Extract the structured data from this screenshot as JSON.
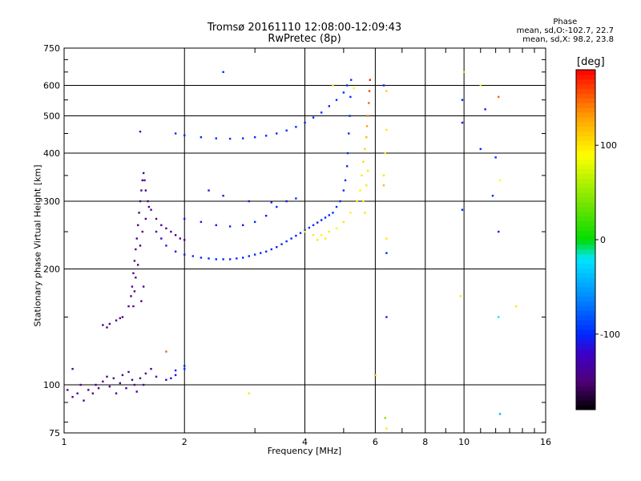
{
  "chart_data": {
    "type": "scatter",
    "title": "Tromsø 20161110 12:08:00-12:09:43",
    "subtitle": "RwPretec (8p)",
    "xlabel": "Frequency [MHz]",
    "ylabel": "Stationary phase Virtual Height [km]",
    "xscale": "log",
    "yscale": "log",
    "xlim": [
      1,
      16
    ],
    "ylim": [
      75,
      750
    ],
    "x_ticks": [
      "1",
      "2",
      "4",
      "6",
      "8",
      "10",
      "16"
    ],
    "x_tick_values": [
      1,
      2,
      4,
      6,
      8,
      10,
      16
    ],
    "y_ticks": [
      "75",
      "100",
      "200",
      "300",
      "400",
      "500",
      "600",
      "750"
    ],
    "y_tick_values": [
      75,
      100,
      200,
      300,
      400,
      500,
      600,
      750
    ],
    "grid": true,
    "phase_stats": {
      "header": "Phase",
      "line_o": "mean, sd,O:-102.7, 22.7",
      "line_x": "mean, sd,X:  98.2, 23.8"
    },
    "colorbar": {
      "unit": "[deg]",
      "range": [
        -180,
        180
      ],
      "ticks": [
        "100",
        "0",
        "-100"
      ],
      "tick_values": [
        100,
        0,
        -100
      ]
    },
    "series": [
      {
        "comment_ignored": false,
        "points": [
          [
            1.02,
            97,
            -150
          ],
          [
            1.05,
            93,
            -150
          ],
          [
            1.08,
            95,
            -140
          ],
          [
            1.1,
            100,
            -150
          ],
          [
            1.12,
            91,
            -140
          ],
          [
            1.15,
            97,
            -150
          ],
          [
            1.18,
            95,
            -140
          ],
          [
            1.2,
            100,
            -150
          ],
          [
            1.22,
            98,
            -145
          ],
          [
            1.25,
            102,
            -140
          ],
          [
            1.28,
            105,
            -150
          ],
          [
            1.3,
            99,
            -140
          ],
          [
            1.33,
            104,
            -150
          ],
          [
            1.35,
            95,
            -145
          ],
          [
            1.38,
            101,
            -140
          ],
          [
            1.4,
            106,
            -145
          ],
          [
            1.43,
            98,
            -140
          ],
          [
            1.45,
            108,
            -150
          ],
          [
            1.48,
            103,
            -140
          ],
          [
            1.5,
            100,
            -145
          ],
          [
            1.52,
            96,
            -140
          ],
          [
            1.55,
            104,
            -150
          ],
          [
            1.58,
            100,
            -140
          ],
          [
            1.6,
            107,
            -145
          ],
          [
            1.65,
            110,
            -150
          ],
          [
            1.7,
            105,
            -140
          ],
          [
            1.8,
            103,
            -120
          ],
          [
            1.9,
            109,
            -110
          ],
          [
            2.0,
            110,
            -100
          ],
          [
            1.05,
            110,
            -140
          ],
          [
            1.25,
            143,
            -140
          ],
          [
            1.28,
            141,
            -150
          ],
          [
            1.3,
            144,
            -140
          ],
          [
            1.35,
            147,
            -140
          ],
          [
            1.38,
            149,
            -150
          ],
          [
            1.4,
            150,
            -140
          ],
          [
            1.45,
            160,
            -145
          ],
          [
            1.47,
            170,
            -150
          ],
          [
            1.48,
            180,
            -140
          ],
          [
            1.49,
            195,
            -150
          ],
          [
            1.5,
            210,
            -145
          ],
          [
            1.51,
            225,
            -150
          ],
          [
            1.52,
            240,
            -140
          ],
          [
            1.53,
            260,
            -150
          ],
          [
            1.54,
            280,
            -145
          ],
          [
            1.55,
            300,
            -150
          ],
          [
            1.56,
            320,
            -140
          ],
          [
            1.57,
            340,
            -145
          ],
          [
            1.58,
            355,
            -150
          ],
          [
            1.59,
            340,
            -140
          ],
          [
            1.6,
            320,
            -150
          ],
          [
            1.62,
            300,
            -145
          ],
          [
            1.65,
            285,
            -140
          ],
          [
            1.7,
            270,
            -150
          ],
          [
            1.75,
            260,
            -140
          ],
          [
            1.8,
            255,
            -145
          ],
          [
            1.85,
            250,
            -140
          ],
          [
            1.9,
            245,
            -150
          ],
          [
            1.95,
            240,
            -140
          ],
          [
            2.0,
            238,
            -145
          ],
          [
            1.49,
            160,
            -150
          ],
          [
            1.5,
            175,
            -140
          ],
          [
            1.51,
            190,
            -150
          ],
          [
            1.53,
            205,
            -145
          ],
          [
            1.55,
            230,
            -140
          ],
          [
            1.57,
            250,
            -150
          ],
          [
            1.6,
            270,
            -145
          ],
          [
            1.63,
            290,
            -140
          ],
          [
            1.58,
            180,
            -145
          ],
          [
            1.56,
            165,
            -150
          ],
          [
            1.7,
            250,
            -120
          ],
          [
            1.75,
            240,
            -120
          ],
          [
            1.8,
            230,
            -110
          ],
          [
            1.9,
            222,
            -110
          ],
          [
            2.0,
            218,
            -105
          ],
          [
            2.1,
            216,
            -100
          ],
          [
            2.2,
            214,
            -100
          ],
          [
            2.3,
            213,
            -105
          ],
          [
            2.4,
            212,
            -100
          ],
          [
            2.5,
            212,
            -100
          ],
          [
            2.6,
            212,
            -105
          ],
          [
            2.7,
            213,
            -100
          ],
          [
            2.8,
            214,
            -100
          ],
          [
            2.9,
            216,
            -100
          ],
          [
            3.0,
            218,
            -105
          ],
          [
            3.1,
            220,
            -100
          ],
          [
            3.2,
            222,
            -100
          ],
          [
            3.3,
            225,
            -100
          ],
          [
            3.4,
            228,
            -105
          ],
          [
            3.5,
            232,
            -100
          ],
          [
            3.6,
            236,
            -100
          ],
          [
            3.7,
            240,
            -100
          ],
          [
            3.8,
            244,
            -105
          ],
          [
            3.9,
            248,
            -100
          ],
          [
            4.0,
            252,
            -100
          ],
          [
            4.1,
            256,
            -100
          ],
          [
            4.2,
            260,
            -100
          ],
          [
            4.3,
            264,
            -105
          ],
          [
            4.4,
            268,
            -100
          ],
          [
            4.5,
            272,
            -100
          ],
          [
            4.6,
            276,
            -100
          ],
          [
            4.7,
            280,
            -100
          ],
          [
            4.8,
            290,
            -100
          ],
          [
            4.9,
            300,
            -100
          ],
          [
            5.0,
            320,
            -100
          ],
          [
            5.05,
            340,
            -100
          ],
          [
            5.1,
            370,
            -100
          ],
          [
            5.12,
            400,
            -100
          ],
          [
            5.15,
            450,
            -100
          ],
          [
            5.18,
            500,
            -100
          ],
          [
            5.2,
            560,
            -100
          ],
          [
            5.22,
            620,
            -100
          ],
          [
            2.0,
            270,
            -110
          ],
          [
            2.2,
            265,
            -110
          ],
          [
            2.4,
            260,
            -110
          ],
          [
            2.6,
            258,
            -100
          ],
          [
            2.8,
            260,
            -110
          ],
          [
            3.0,
            265,
            -100
          ],
          [
            3.2,
            275,
            -110
          ],
          [
            3.4,
            290,
            -100
          ],
          [
            3.6,
            300,
            -110
          ],
          [
            3.8,
            305,
            -100
          ],
          [
            2.3,
            320,
            -110
          ],
          [
            2.5,
            310,
            -110
          ],
          [
            2.9,
            300,
            -110
          ],
          [
            3.3,
            298,
            -105
          ],
          [
            1.9,
            450,
            -100
          ],
          [
            2.0,
            445,
            -100
          ],
          [
            2.2,
            440,
            -100
          ],
          [
            2.4,
            437,
            -100
          ],
          [
            2.6,
            436,
            -100
          ],
          [
            2.8,
            437,
            -100
          ],
          [
            3.0,
            440,
            -100
          ],
          [
            3.2,
            444,
            -100
          ],
          [
            3.4,
            450,
            -100
          ],
          [
            3.6,
            458,
            -100
          ],
          [
            3.8,
            468,
            -100
          ],
          [
            4.0,
            480,
            -100
          ],
          [
            4.2,
            495,
            -100
          ],
          [
            4.4,
            510,
            -100
          ],
          [
            4.6,
            530,
            -100
          ],
          [
            4.8,
            550,
            -100
          ],
          [
            5.0,
            575,
            -100
          ],
          [
            5.1,
            600,
            -100
          ],
          [
            2.5,
            650,
            -100
          ],
          [
            1.55,
            455,
            -110
          ],
          [
            4.0,
            250,
            100
          ],
          [
            4.2,
            245,
            100
          ],
          [
            4.4,
            245,
            95
          ],
          [
            4.6,
            250,
            100
          ],
          [
            4.8,
            255,
            95
          ],
          [
            5.0,
            265,
            100
          ],
          [
            5.2,
            280,
            95
          ],
          [
            5.4,
            300,
            100
          ],
          [
            5.5,
            320,
            95
          ],
          [
            5.55,
            350,
            100
          ],
          [
            5.6,
            380,
            105
          ],
          [
            5.65,
            410,
            110
          ],
          [
            5.7,
            440,
            120
          ],
          [
            5.72,
            470,
            130
          ],
          [
            5.75,
            500,
            140
          ],
          [
            5.78,
            540,
            150
          ],
          [
            5.8,
            580,
            160
          ],
          [
            5.82,
            620,
            170
          ],
          [
            4.7,
            600,
            100
          ],
          [
            5.3,
            590,
            95
          ],
          [
            5.6,
            300,
            95
          ],
          [
            5.7,
            330,
            100
          ],
          [
            5.75,
            360,
            100
          ],
          [
            5.65,
            280,
            100
          ],
          [
            4.5,
            240,
            100
          ],
          [
            4.3,
            238,
            100
          ],
          [
            6.3,
            600,
            -110
          ],
          [
            6.4,
            580,
            110
          ],
          [
            6.4,
            460,
            100
          ],
          [
            6.35,
            400,
            100
          ],
          [
            6.3,
            350,
            100
          ],
          [
            6.3,
            330,
            120
          ],
          [
            6.4,
            240,
            100
          ],
          [
            6.4,
            220,
            -100
          ],
          [
            6.4,
            150,
            -110
          ],
          [
            6.35,
            82,
            40
          ],
          [
            6.4,
            77,
            100
          ],
          [
            6.0,
            106,
            120
          ],
          [
            9.9,
            550,
            -100
          ],
          [
            9.9,
            480,
            -110
          ],
          [
            9.9,
            285,
            -100
          ],
          [
            10.0,
            650,
            110
          ],
          [
            9.8,
            170,
            100
          ],
          [
            11.0,
            600,
            100
          ],
          [
            11.3,
            520,
            -110
          ],
          [
            12.2,
            560,
            150
          ],
          [
            11.0,
            410,
            -100
          ],
          [
            12.0,
            390,
            -100
          ],
          [
            11.8,
            310,
            -100
          ],
          [
            12.3,
            340,
            90
          ],
          [
            12.2,
            250,
            -110
          ],
          [
            13.5,
            160,
            100
          ],
          [
            12.2,
            150,
            -20
          ],
          [
            12.3,
            84,
            -40
          ],
          [
            2.9,
            95,
            100
          ],
          [
            1.8,
            122,
            150
          ],
          [
            1.85,
            104,
            -110
          ],
          [
            1.9,
            106,
            -110
          ],
          [
            2.0,
            112,
            -100
          ]
        ]
      }
    ]
  }
}
